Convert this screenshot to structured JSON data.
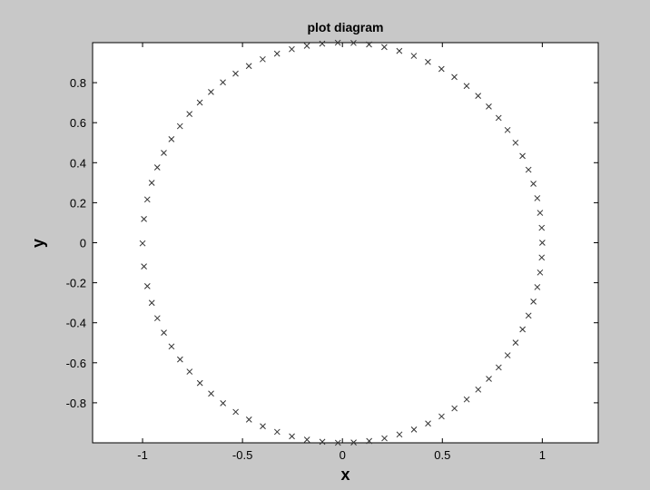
{
  "chart_data": {
    "type": "scatter",
    "title": "plot diagram",
    "xlabel": "x",
    "ylabel": "y",
    "xlim": [
      -1.25,
      1.28
    ],
    "ylim": [
      -1.0,
      1.0
    ],
    "xticks": [
      -1,
      -0.5,
      0,
      0.5,
      1
    ],
    "xtick_labels": [
      "-1",
      "-0.5",
      "0",
      "0.5",
      "1"
    ],
    "yticks": [
      -0.8,
      -0.6,
      -0.4,
      -0.2,
      0,
      0.2,
      0.4,
      0.6,
      0.8
    ],
    "ytick_labels": [
      "-0.8",
      "-0.6",
      "-0.4",
      "-0.2",
      "0",
      "0.2",
      "0.4",
      "0.6",
      "0.8"
    ],
    "grid": false,
    "marker": "x",
    "series": [
      {
        "x": [
          1.0,
          0.9972,
          0.9888,
          0.9749,
          0.9556,
          0.931,
          0.9011,
          0.8661,
          0.8262,
          0.7815,
          0.7324,
          0.6789,
          0.6214,
          0.5602,
          0.4956,
          0.4279,
          0.3574,
          0.2846,
          0.2097,
          0.1332,
          0.0555,
          -0.0231,
          -0.1011,
          -0.1779,
          -0.2533,
          -0.3271,
          -0.3989,
          -0.4681,
          -0.5346,
          -0.5979,
          -0.6576,
          -0.7136,
          -0.7654,
          -0.8128,
          -0.8556,
          -0.8936,
          -0.9264,
          -0.9541,
          -0.9763,
          -0.993,
          -1.0,
          -0.9929,
          -0.9761,
          -0.9538,
          -0.9261,
          -0.8932,
          -0.8552,
          -0.8123,
          -0.7649,
          -0.7131,
          -0.6571,
          -0.5974,
          -0.534,
          -0.4675,
          -0.3983,
          -0.3265,
          -0.2527,
          -0.1772,
          -0.1005,
          -0.0224,
          0.0562,
          0.1338,
          0.2104,
          0.2852,
          0.358,
          0.4285,
          0.4962,
          0.5607,
          0.6219,
          0.6794,
          0.7328,
          0.7819,
          0.8265,
          0.8664,
          0.9014,
          0.9312,
          0.9557,
          0.975,
          0.9889,
          0.9972
        ],
        "y": [
          0.0,
          0.0745,
          0.1494,
          0.2225,
          0.2946,
          0.3648,
          0.4336,
          0.4998,
          0.5633,
          0.6239,
          0.6809,
          0.7342,
          0.7835,
          0.8283,
          0.8686,
          0.9038,
          0.9339,
          0.9586,
          0.9778,
          0.9911,
          0.9985,
          0.9997,
          0.9949,
          0.984,
          0.9674,
          0.945,
          0.917,
          0.8834,
          0.8451,
          0.8017,
          0.7534,
          0.7006,
          0.6435,
          0.5825,
          0.5177,
          0.4488,
          0.3765,
          0.2995,
          0.2163,
          0.1183,
          -0.0031,
          -0.1186,
          -0.2172,
          -0.3003,
          -0.3773,
          -0.4495,
          -0.5184,
          -0.5832,
          -0.6442,
          -0.7012,
          -0.7539,
          -0.8021,
          -0.8455,
          -0.8838,
          -0.9173,
          -0.9452,
          -0.9676,
          -0.9842,
          -0.995,
          -0.9997,
          -0.9984,
          -0.991,
          -0.9776,
          -0.9584,
          -0.9337,
          -0.9035,
          -0.8682,
          -0.8279,
          -0.7831,
          -0.7338,
          -0.6804,
          -0.6233,
          -0.5627,
          -0.4993,
          -0.4331,
          -0.3643,
          -0.2941,
          -0.222,
          -0.1489,
          -0.074
        ]
      }
    ]
  }
}
